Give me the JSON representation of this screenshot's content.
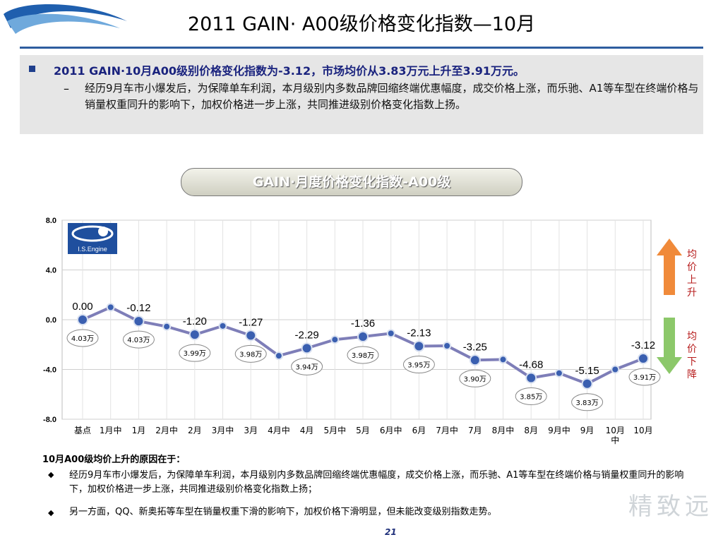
{
  "title": "2011 GAIN· A00级价格变化指数—10月",
  "bullet_main": "2011 GAIN·10月A00级别价格变化指数为-3.12，市场均价从3.83万元上升至3.91万元。",
  "bullet_sub": "经历9月车市小爆发后，为保障单车利润，本月级别内多数品牌回缩终端优惠幅度，成交价格上涨，而乐驰、A1等车型在终端价格与销量权重同升的影响下，加权价格进一步上涨，共同推进级别价格变化指数上扬。",
  "bullet_sub_marker": "–",
  "chart_banner": "GAIN·月度价格变化指数-A00级",
  "logo_text": "I.S.Engine",
  "arrow_up_label": "均价上升",
  "arrow_down_label": "均价下降",
  "reasons": {
    "heading": "10月A00级均价上升的原因在于：",
    "items": [
      "经历9月车市小爆发后，为保障单车利润，本月级别内多数品牌回缩终端优惠幅度，成交价格上涨，而乐驰、A1等车型在终端价格与销量权重同升的影响下，加权价格进一步上涨，共同推进级别价格变化指数上扬；",
      "另一方面，QQ、新奥拓等车型在销量权重下滑的影响下，加权价格下滑明显，但未能改变级别指数走势。"
    ]
  },
  "page_number": "21",
  "watermark": "精致远",
  "colors": {
    "line": "#7e7eb8",
    "marker": "#3a5fb0",
    "title_rule": "#2e5d9f",
    "bullet_text": "#1a237e",
    "arrow_up": "#f08a3a",
    "arrow_down": "#8cc86a"
  },
  "chart_data": {
    "type": "line",
    "categories": [
      "基点",
      "1月中",
      "1月",
      "2月中",
      "2月",
      "3月中",
      "3月",
      "4月中",
      "4月",
      "5月中",
      "5月",
      "6月中",
      "6月",
      "7月中",
      "7月",
      "8月中",
      "8月",
      "9月中",
      "9月",
      "10月中",
      "10月"
    ],
    "category_display": [
      "基点",
      "1月中",
      "1月",
      "2月中",
      "2月",
      "3月中",
      "3月",
      "4月中",
      "4月",
      "5月中",
      "5月",
      "6月中",
      "6月",
      "7月中",
      "7月",
      "8月中",
      "8月",
      "9月中",
      "9月",
      "10月\n中",
      "10月"
    ],
    "values": [
      0.0,
      1.0,
      -0.12,
      -0.55,
      -1.2,
      -0.5,
      -1.27,
      -2.9,
      -2.29,
      -1.6,
      -1.36,
      -1.1,
      -2.13,
      -2.1,
      -3.25,
      -3.2,
      -4.68,
      -4.3,
      -5.15,
      -4.0,
      -3.12
    ],
    "value_labels": [
      {
        "i": 0,
        "text": "0.00"
      },
      {
        "i": 2,
        "text": "-0.12"
      },
      {
        "i": 4,
        "text": "-1.20"
      },
      {
        "i": 6,
        "text": "-1.27"
      },
      {
        "i": 8,
        "text": "-2.29"
      },
      {
        "i": 10,
        "text": "-1.36"
      },
      {
        "i": 12,
        "text": "-2.13"
      },
      {
        "i": 14,
        "text": "-3.25"
      },
      {
        "i": 16,
        "text": "-4.68"
      },
      {
        "i": 18,
        "text": "-5.15"
      },
      {
        "i": 20,
        "text": "-3.12"
      }
    ],
    "price_callouts": [
      {
        "i": 0,
        "text": "4.03万"
      },
      {
        "i": 2,
        "text": "4.03万"
      },
      {
        "i": 4,
        "text": "3.99万"
      },
      {
        "i": 6,
        "text": "3.98万"
      },
      {
        "i": 8,
        "text": "3.94万"
      },
      {
        "i": 10,
        "text": "3.98万"
      },
      {
        "i": 12,
        "text": "3.95万"
      },
      {
        "i": 14,
        "text": "3.90万"
      },
      {
        "i": 16,
        "text": "3.85万"
      },
      {
        "i": 18,
        "text": "3.83万"
      },
      {
        "i": 20,
        "text": "3.91万"
      }
    ],
    "yticks": [
      "8.0",
      "4.0",
      "0.0",
      "-4.0",
      "-8.0"
    ],
    "ylim": [
      -8,
      8
    ],
    "grid": true
  }
}
